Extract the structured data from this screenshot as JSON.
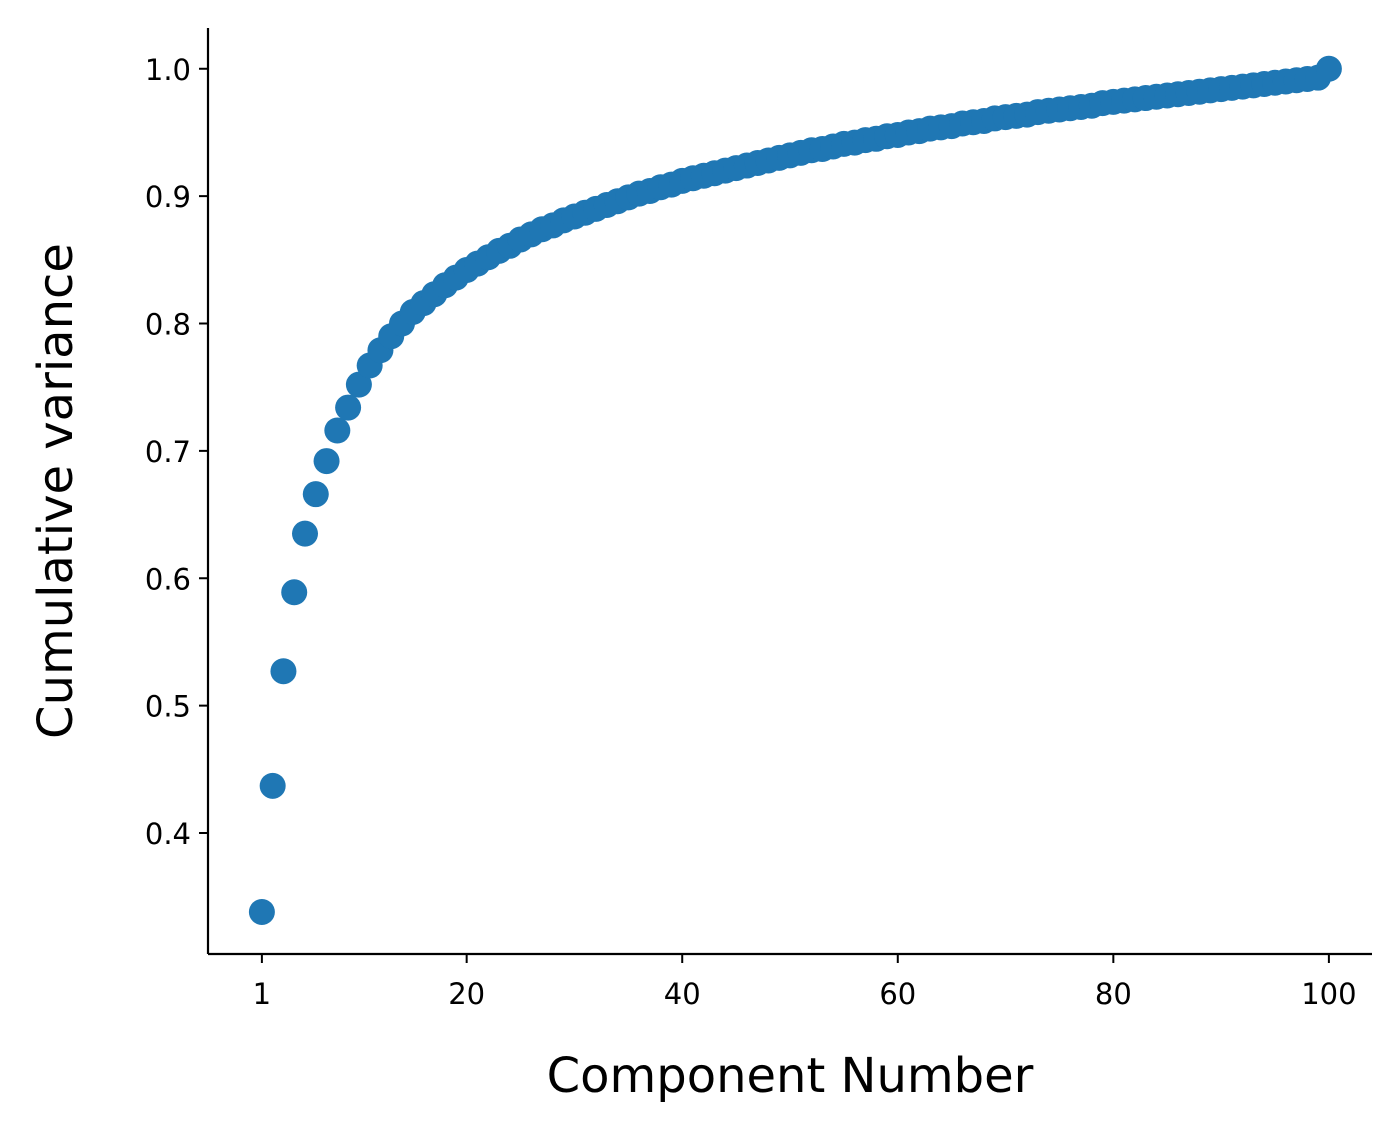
{
  "chart_data": {
    "type": "scatter",
    "title": "",
    "xlabel": "Component Number",
    "ylabel": "Cumulative variance",
    "xlim": [
      -4,
      104
    ],
    "ylim": [
      0.305,
      1.032
    ],
    "xticks": [
      1,
      20,
      40,
      60,
      80,
      100
    ],
    "xtick_labels": [
      "1",
      "20",
      "40",
      "60",
      "80",
      "100"
    ],
    "yticks": [
      0.4,
      0.5,
      0.6,
      0.7,
      0.8,
      0.9,
      1.0
    ],
    "ytick_labels": [
      "0.4",
      "0.5",
      "0.6",
      "0.7",
      "0.8",
      "0.9",
      "1.0"
    ],
    "grid": false,
    "marker_color": "#1f77b4",
    "series": [
      {
        "x": [
          1,
          2,
          3,
          4,
          5,
          6,
          7,
          8,
          9,
          10,
          11,
          12,
          13,
          14,
          15,
          16,
          17,
          18,
          19,
          20,
          21,
          22,
          23,
          24,
          25,
          26,
          27,
          28,
          29,
          30,
          31,
          32,
          33,
          34,
          35,
          36,
          37,
          38,
          39,
          40,
          41,
          42,
          43,
          44,
          45,
          46,
          47,
          48,
          49,
          50,
          51,
          52,
          53,
          54,
          55,
          56,
          57,
          58,
          59,
          60,
          61,
          62,
          63,
          64,
          65,
          66,
          67,
          68,
          69,
          70,
          71,
          72,
          73,
          74,
          75,
          76,
          77,
          78,
          79,
          80,
          81,
          82,
          83,
          84,
          85,
          86,
          87,
          88,
          89,
          90,
          91,
          92,
          93,
          94,
          95,
          96,
          97,
          98,
          99,
          100
        ],
        "values": [
          0.338,
          0.437,
          0.527,
          0.589,
          0.635,
          0.666,
          0.692,
          0.716,
          0.734,
          0.752,
          0.767,
          0.779,
          0.79,
          0.8,
          0.809,
          0.816,
          0.823,
          0.83,
          0.836,
          0.842,
          0.847,
          0.852,
          0.857,
          0.861,
          0.866,
          0.87,
          0.874,
          0.877,
          0.881,
          0.884,
          0.887,
          0.89,
          0.893,
          0.896,
          0.899,
          0.902,
          0.904,
          0.907,
          0.909,
          0.912,
          0.914,
          0.916,
          0.918,
          0.92,
          0.922,
          0.924,
          0.926,
          0.928,
          0.93,
          0.932,
          0.934,
          0.936,
          0.937,
          0.939,
          0.941,
          0.942,
          0.944,
          0.945,
          0.947,
          0.948,
          0.95,
          0.951,
          0.953,
          0.954,
          0.955,
          0.957,
          0.958,
          0.959,
          0.961,
          0.962,
          0.963,
          0.964,
          0.966,
          0.967,
          0.968,
          0.969,
          0.97,
          0.971,
          0.973,
          0.974,
          0.975,
          0.976,
          0.977,
          0.978,
          0.979,
          0.98,
          0.981,
          0.982,
          0.983,
          0.984,
          0.985,
          0.986,
          0.987,
          0.988,
          0.989,
          0.99,
          0.991,
          0.992,
          0.993,
          1.0
        ]
      }
    ]
  }
}
